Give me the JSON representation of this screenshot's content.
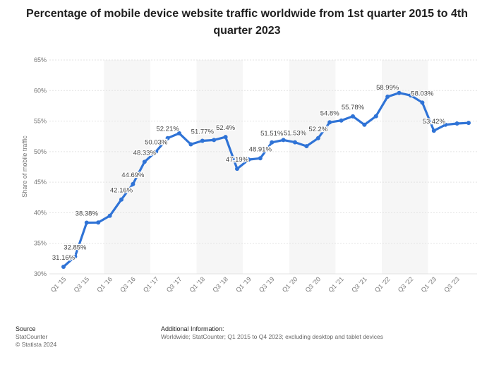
{
  "page": {
    "title_line1": "Percentage of mobile device website traffic worldwide from 1st quarter 2015 to 4th",
    "title_line2": "quarter 2023"
  },
  "footer": {
    "source_heading": "Source",
    "source_name": "StatCounter",
    "copyright": "© Statista 2024",
    "info_heading": "Additional Information:",
    "info_text": "Worldwide; StatCounter; Q1 2015 to Q4 2023; excluding desktop and tablet devices"
  },
  "colors": {
    "line": "#2f73d6",
    "grid": "#e3e3e3",
    "band": "#f6f6f6",
    "axis_text": "#777777",
    "label_text": "#444444"
  },
  "chart_data": {
    "type": "line",
    "title": "Percentage of mobile device website traffic worldwide from 1st quarter 2015 to 4th quarter 2023",
    "xlabel": "",
    "ylabel": "Share of mobile traffic",
    "ylim": [
      30,
      65
    ],
    "yticks": [
      "30%",
      "35%",
      "40%",
      "45%",
      "50%",
      "55%",
      "60%",
      "65%"
    ],
    "grid": true,
    "x": [
      "Q1 '15",
      "Q2 '15",
      "Q3 '15",
      "Q4 '15",
      "Q1 '16",
      "Q2 '16",
      "Q3 '16",
      "Q4 '16",
      "Q1 '17",
      "Q2 '17",
      "Q3 '17",
      "Q4 '17",
      "Q1 '18",
      "Q2 '18",
      "Q3 '18",
      "Q4 '18",
      "Q1 '19",
      "Q2 '19",
      "Q3 '19",
      "Q4 '19",
      "Q1 '20",
      "Q2 '20",
      "Q3 '20",
      "Q4 '20",
      "Q1 '21",
      "Q2 '21",
      "Q3 '21",
      "Q4 '21",
      "Q1 '22",
      "Q2 '22",
      "Q3 '22",
      "Q4 '22",
      "Q1 '23",
      "Q2 '23",
      "Q3 '23",
      "Q4 '23"
    ],
    "xtick_labels": [
      "Q1 '15",
      "Q3 '15",
      "Q1 '16",
      "Q3 '16",
      "Q1 '17",
      "Q3 '17",
      "Q1 '18",
      "Q3 '18",
      "Q1 '19",
      "Q3 '19",
      "Q1 '20",
      "Q3 '20",
      "Q1 '21",
      "Q3 '21",
      "Q1 '22",
      "Q3 '22",
      "Q1 '23",
      "Q3 '23"
    ],
    "series": [
      {
        "name": "Share of mobile traffic",
        "values": [
          31.16,
          32.85,
          38.38,
          38.4,
          39.5,
          42.16,
          44.69,
          48.33,
          50.03,
          52.21,
          53.0,
          51.2,
          51.77,
          51.9,
          52.4,
          47.19,
          48.7,
          48.91,
          51.51,
          51.9,
          51.53,
          50.9,
          52.2,
          54.8,
          55.1,
          55.78,
          54.4,
          55.8,
          58.99,
          59.6,
          59.2,
          58.03,
          53.42,
          54.4,
          54.6,
          54.7
        ]
      }
    ],
    "data_labels": [
      {
        "index": 0,
        "text": "31.16%"
      },
      {
        "index": 1,
        "text": "32.85%"
      },
      {
        "index": 2,
        "text": "38.38%"
      },
      {
        "index": 5,
        "text": "42.16%"
      },
      {
        "index": 6,
        "text": "44.69%"
      },
      {
        "index": 7,
        "text": "48.33%"
      },
      {
        "index": 8,
        "text": "50.03%"
      },
      {
        "index": 9,
        "text": "52.21%"
      },
      {
        "index": 12,
        "text": "51.77%"
      },
      {
        "index": 14,
        "text": "52.4%"
      },
      {
        "index": 15,
        "text": "47.19%"
      },
      {
        "index": 17,
        "text": "48.91%"
      },
      {
        "index": 18,
        "text": "51.51%"
      },
      {
        "index": 20,
        "text": "51.53%"
      },
      {
        "index": 22,
        "text": "52.2%"
      },
      {
        "index": 23,
        "text": "54.8%"
      },
      {
        "index": 25,
        "text": "55.78%"
      },
      {
        "index": 28,
        "text": "58.99%"
      },
      {
        "index": 31,
        "text": "58.03%"
      },
      {
        "index": 32,
        "text": "53.42%"
      }
    ]
  }
}
